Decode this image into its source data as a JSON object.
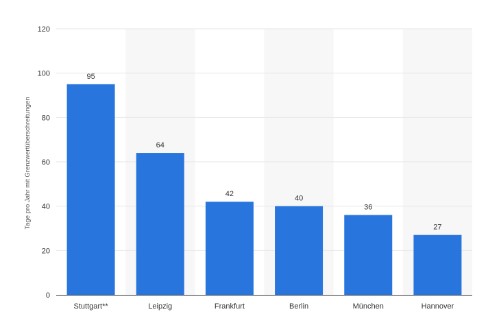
{
  "chart_data": {
    "type": "bar",
    "title": "",
    "xlabel": "",
    "ylabel": "Tage pro Jahr mit Grenzwertüberschreitungen",
    "categories": [
      "Stuttgart**",
      "Leipzig",
      "Frankfurt",
      "Berlin",
      "München",
      "Hannover"
    ],
    "values": [
      95,
      64,
      42,
      40,
      36,
      27
    ],
    "ylim": [
      0,
      120
    ],
    "yticks": [
      0,
      20,
      40,
      60,
      80,
      100,
      120
    ],
    "grid": true,
    "alternating_column_bands": true,
    "data_labels": true,
    "colors": {
      "bar": "#2876DD",
      "grid": "#E6E6E6",
      "band": "#F7F7F7",
      "axis": "#333333",
      "text": "#333333"
    }
  }
}
